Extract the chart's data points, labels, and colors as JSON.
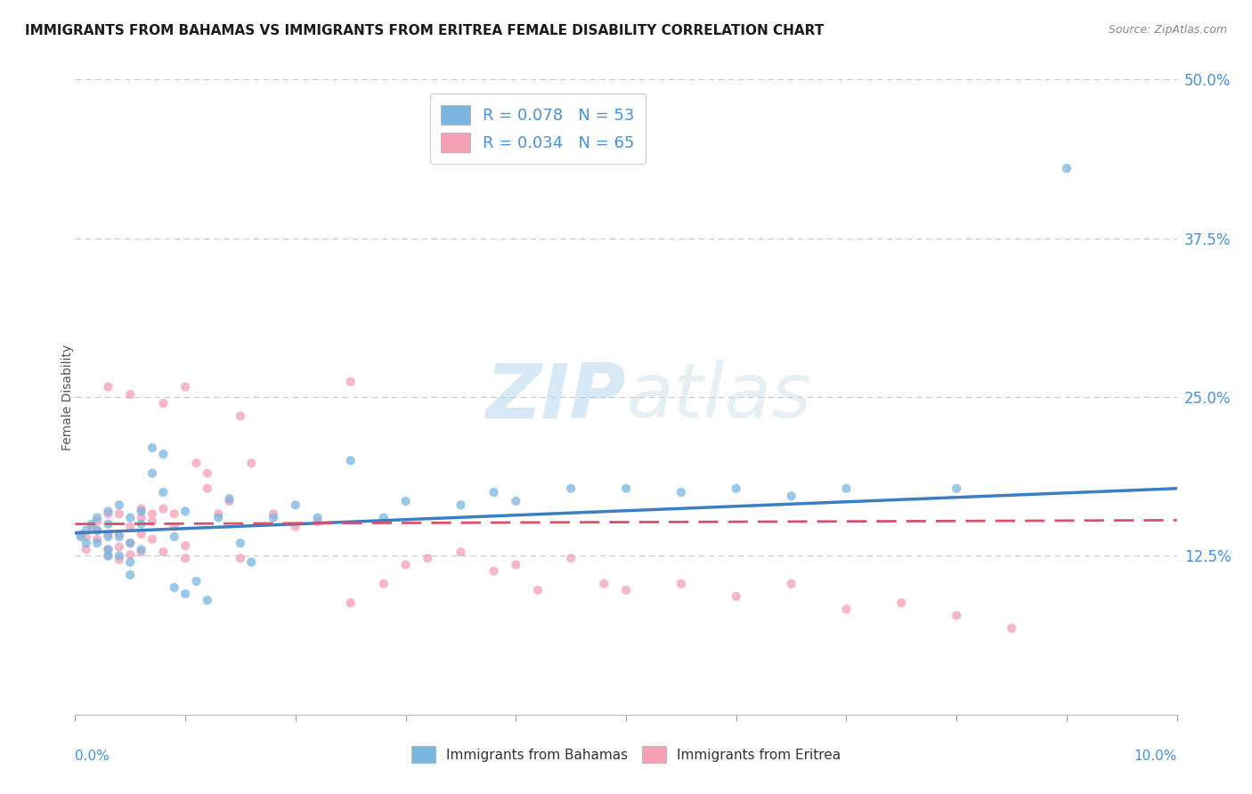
{
  "title": "IMMIGRANTS FROM BAHAMAS VS IMMIGRANTS FROM ERITREA FEMALE DISABILITY CORRELATION CHART",
  "source": "Source: ZipAtlas.com",
  "ylabel": "Female Disability",
  "x_min": 0.0,
  "x_max": 0.1,
  "y_min": 0.0,
  "y_max": 0.5,
  "y_ticks": [
    0.125,
    0.25,
    0.375,
    0.5
  ],
  "y_tick_labels": [
    "12.5%",
    "25.0%",
    "37.5%",
    "50.0%"
  ],
  "watermark_text": "ZIPatlas",
  "series": [
    {
      "label": "Immigrants from Bahamas",
      "color": "#7ab6e0",
      "R": 0.078,
      "N": 53,
      "x": [
        0.0005,
        0.001,
        0.001,
        0.0015,
        0.002,
        0.002,
        0.002,
        0.003,
        0.003,
        0.003,
        0.003,
        0.003,
        0.004,
        0.004,
        0.004,
        0.005,
        0.005,
        0.005,
        0.005,
        0.006,
        0.006,
        0.006,
        0.007,
        0.007,
        0.008,
        0.008,
        0.009,
        0.009,
        0.01,
        0.01,
        0.011,
        0.012,
        0.013,
        0.014,
        0.015,
        0.016,
        0.018,
        0.02,
        0.022,
        0.025,
        0.028,
        0.03,
        0.035,
        0.038,
        0.04,
        0.045,
        0.05,
        0.055,
        0.06,
        0.065,
        0.07,
        0.08,
        0.09
      ],
      "y": [
        0.14,
        0.145,
        0.135,
        0.15,
        0.145,
        0.135,
        0.155,
        0.15,
        0.14,
        0.13,
        0.16,
        0.125,
        0.165,
        0.14,
        0.125,
        0.155,
        0.135,
        0.12,
        0.11,
        0.15,
        0.16,
        0.13,
        0.21,
        0.19,
        0.205,
        0.175,
        0.14,
        0.1,
        0.16,
        0.095,
        0.105,
        0.09,
        0.155,
        0.17,
        0.135,
        0.12,
        0.155,
        0.165,
        0.155,
        0.2,
        0.155,
        0.168,
        0.165,
        0.175,
        0.168,
        0.178,
        0.178,
        0.175,
        0.178,
        0.172,
        0.178,
        0.178,
        0.43
      ],
      "trend_x": [
        0.0,
        0.1
      ],
      "trend_y": [
        0.143,
        0.178
      ]
    },
    {
      "label": "Immigrants from Eritrea",
      "color": "#f4a0b5",
      "R": 0.034,
      "N": 65,
      "x": [
        0.0005,
        0.001,
        0.001,
        0.0015,
        0.002,
        0.002,
        0.002,
        0.003,
        0.003,
        0.003,
        0.003,
        0.004,
        0.004,
        0.004,
        0.005,
        0.005,
        0.005,
        0.006,
        0.006,
        0.006,
        0.007,
        0.007,
        0.008,
        0.008,
        0.009,
        0.009,
        0.01,
        0.01,
        0.011,
        0.012,
        0.013,
        0.014,
        0.015,
        0.016,
        0.018,
        0.02,
        0.022,
        0.025,
        0.028,
        0.03,
        0.032,
        0.035,
        0.038,
        0.04,
        0.042,
        0.045,
        0.048,
        0.05,
        0.055,
        0.06,
        0.065,
        0.07,
        0.075,
        0.08,
        0.085,
        0.003,
        0.004,
        0.005,
        0.006,
        0.007,
        0.008,
        0.01,
        0.012,
        0.015,
        0.025
      ],
      "y": [
        0.142,
        0.14,
        0.13,
        0.148,
        0.145,
        0.138,
        0.152,
        0.142,
        0.13,
        0.125,
        0.158,
        0.142,
        0.132,
        0.122,
        0.148,
        0.135,
        0.126,
        0.162,
        0.142,
        0.128,
        0.158,
        0.138,
        0.128,
        0.245,
        0.148,
        0.158,
        0.133,
        0.123,
        0.198,
        0.19,
        0.158,
        0.168,
        0.235,
        0.198,
        0.158,
        0.148,
        0.152,
        0.262,
        0.103,
        0.118,
        0.123,
        0.128,
        0.113,
        0.118,
        0.098,
        0.123,
        0.103,
        0.098,
        0.103,
        0.093,
        0.103,
        0.083,
        0.088,
        0.078,
        0.068,
        0.258,
        0.158,
        0.252,
        0.155,
        0.152,
        0.162,
        0.258,
        0.178,
        0.123,
        0.088
      ],
      "trend_x": [
        0.0,
        0.1
      ],
      "trend_y": [
        0.15,
        0.153
      ]
    }
  ],
  "blue_color": "#3a7fc1",
  "pink_color": "#d94f6e",
  "axis_color": "#4a90d9",
  "grid_color": "#c8c8c8",
  "background_color": "#ffffff"
}
